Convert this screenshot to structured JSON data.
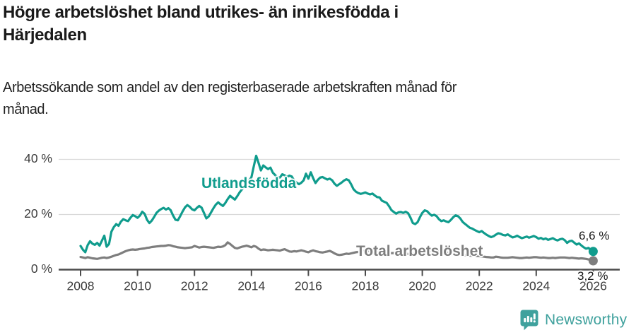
{
  "header": {
    "title_lines": [
      "Högre arbetslöshet bland utrikes- än inrikesfödda i",
      "Härjedalen"
    ],
    "subtitle_lines": [
      "Arbetssökande som andel av den registerbaserade arbetskraften månad för",
      "månad."
    ]
  },
  "colors": {
    "accent_teal": "#109c8d",
    "series_gray": "#7e7e7e",
    "axis": "#4b4b4b",
    "grid": "#d9d9d9",
    "tick_text": "#3b3b3b",
    "brand": "#3fa19d"
  },
  "chart_data": {
    "type": "line",
    "title": "Högre arbetslöshet bland utrikes- än inrikesfödda i Härjedalen",
    "subtitle": "Arbetssökande som andel av den registerbaserade arbetskraften månad för månad.",
    "x_unit": "month",
    "x_start_year": 2008,
    "x_end_year": 2026,
    "x_ticks": [
      "2008",
      "2010",
      "2012",
      "2014",
      "2016",
      "2018",
      "2020",
      "2022",
      "2024",
      "2026"
    ],
    "y_ticks": [
      {
        "value": 0,
        "label": "0 %"
      },
      {
        "value": 20,
        "label": "20 %"
      },
      {
        "value": 40,
        "label": "40 %"
      }
    ],
    "ylim": [
      0,
      44
    ],
    "grid": "horizontal",
    "legend_position": "inline-labels",
    "series": [
      {
        "name": "Utlandsfödda",
        "color": "#109c8d",
        "end_label": "6,6 %",
        "end_value": 6.6,
        "values": [
          8.6,
          7.2,
          6.3,
          8.9,
          10.3,
          9.4,
          9.0,
          9.7,
          8.7,
          10.5,
          12.3,
          8.3,
          9.3,
          13.8,
          15.4,
          16.5,
          15.9,
          17.4,
          18.3,
          17.9,
          17.6,
          18.8,
          19.8,
          19.4,
          18.8,
          19.6,
          21.0,
          20.2,
          18.1,
          16.9,
          17.8,
          19.1,
          20.6,
          21.4,
          22.0,
          22.4,
          21.8,
          22.3,
          21.5,
          19.6,
          18.1,
          17.9,
          19.4,
          21.1,
          22.6,
          23.4,
          22.8,
          21.9,
          21.5,
          22.4,
          23.1,
          22.5,
          20.6,
          18.6,
          19.3,
          20.8,
          22.3,
          23.6,
          24.4,
          23.7,
          23.1,
          24.2,
          25.6,
          26.8,
          26.1,
          25.4,
          26.6,
          28.0,
          29.1,
          30.2,
          31.4,
          32.2,
          33.5,
          37.6,
          41.3,
          38.7,
          36.0,
          37.8,
          37.1,
          36.5,
          37.0,
          35.2,
          34.3,
          33.4,
          33.4,
          34.6,
          34.2,
          33.6,
          34.1,
          33.8,
          32.3,
          31.6,
          31.0,
          31.5,
          32.4,
          34.8,
          33.0,
          35.3,
          33.2,
          31.4,
          32.6,
          33.4,
          33.6,
          33.1,
          32.7,
          33.0,
          32.4,
          31.2,
          30.4,
          31.0,
          31.6,
          32.3,
          32.8,
          32.4,
          31.0,
          29.2,
          28.3,
          27.8,
          27.5,
          27.7,
          28.0,
          27.6,
          27.3,
          27.6,
          26.9,
          26.3,
          26.2,
          25.0,
          24.6,
          24.2,
          23.0,
          21.6,
          20.9,
          20.3,
          20.8,
          20.9,
          20.6,
          21.0,
          20.5,
          18.9,
          16.9,
          16.5,
          17.2,
          19.0,
          20.6,
          21.5,
          21.2,
          20.3,
          19.6,
          19.9,
          19.4,
          18.3,
          17.6,
          17.9,
          17.5,
          17.2,
          18.0,
          19.0,
          19.7,
          19.4,
          18.6,
          17.3,
          16.6,
          15.9,
          15.2,
          14.9,
          14.4,
          14.0,
          13.6,
          14.0,
          13.3,
          12.7,
          12.2,
          11.8,
          12.1,
          12.7,
          13.2,
          13.0,
          12.6,
          12.4,
          12.8,
          12.2,
          11.7,
          11.9,
          12.3,
          11.8,
          11.4,
          11.7,
          12.0,
          11.6,
          11.9,
          12.2,
          11.8,
          11.2,
          11.5,
          11.0,
          11.3,
          10.8,
          11.1,
          11.4,
          10.9,
          10.6,
          11.0,
          11.2,
          10.7,
          9.7,
          10.3,
          10.5,
          9.8,
          9.1,
          9.5,
          8.8,
          8.1,
          7.6,
          7.9,
          7.2,
          6.6
        ]
      },
      {
        "name": "Total arbetslöshet",
        "color": "#7e7e7e",
        "end_label": "3,2 %",
        "end_value": 3.2,
        "values": [
          4.6,
          4.4,
          4.2,
          4.5,
          4.3,
          4.1,
          4.0,
          3.9,
          4.1,
          4.3,
          4.4,
          4.2,
          4.4,
          4.7,
          5.0,
          5.3,
          5.5,
          5.9,
          6.3,
          6.7,
          7.0,
          7.2,
          7.3,
          7.2,
          7.3,
          7.5,
          7.6,
          7.7,
          7.9,
          8.0,
          8.2,
          8.3,
          8.4,
          8.5,
          8.6,
          8.6,
          8.7,
          8.9,
          8.8,
          8.5,
          8.3,
          8.1,
          8.0,
          7.9,
          7.8,
          7.9,
          8.0,
          8.1,
          8.6,
          8.3,
          8.0,
          8.2,
          8.3,
          8.2,
          8.1,
          8.0,
          7.9,
          8.1,
          8.3,
          8.2,
          8.4,
          8.9,
          9.9,
          9.3,
          8.6,
          7.9,
          7.7,
          8.0,
          8.3,
          8.5,
          8.7,
          8.4,
          8.1,
          8.6,
          8.3,
          7.6,
          7.1,
          7.3,
          7.2,
          7.0,
          7.1,
          7.2,
          7.1,
          7.0,
          6.9,
          7.2,
          7.4,
          7.0,
          6.6,
          6.5,
          6.7,
          6.6,
          6.8,
          7.0,
          6.8,
          6.5,
          6.3,
          6.7,
          7.0,
          6.7,
          6.5,
          6.3,
          6.2,
          6.4,
          6.6,
          6.8,
          6.4,
          5.9,
          5.5,
          5.3,
          5.4,
          5.6,
          5.8,
          5.7,
          5.9,
          6.1,
          6.3,
          6.4,
          6.5,
          6.7,
          6.9,
          6.8,
          6.7,
          6.6,
          6.4,
          6.3,
          6.1,
          6.0,
          5.9,
          5.8,
          5.9,
          6.0,
          6.0,
          6.1,
          6.2,
          6.0,
          5.9,
          5.8,
          5.7,
          5.7,
          5.8,
          5.9,
          6.0,
          6.1,
          6.1,
          6.3,
          6.5,
          6.8,
          6.9,
          6.8,
          6.7,
          6.6,
          6.5,
          6.3,
          6.2,
          6.1,
          6.1,
          6.0,
          5.9,
          5.7,
          5.6,
          5.4,
          5.3,
          5.2,
          5.1,
          5.0,
          5.0,
          4.9,
          4.9,
          4.8,
          4.7,
          4.6,
          4.5,
          4.4,
          4.4,
          4.7,
          4.6,
          4.4,
          4.3,
          4.3,
          4.3,
          4.4,
          4.5,
          4.4,
          4.3,
          4.2,
          4.2,
          4.3,
          4.4,
          4.3,
          4.4,
          4.5,
          4.5,
          4.4,
          4.3,
          4.4,
          4.3,
          4.2,
          4.2,
          4.3,
          4.2,
          4.3,
          4.4,
          4.4,
          4.4,
          4.3,
          4.2,
          4.3,
          4.2,
          4.1,
          4.0,
          4.1,
          4.0,
          3.9,
          3.7,
          3.5,
          3.2
        ]
      }
    ]
  },
  "footer": {
    "brand": "Newsworthy",
    "brand_color": "#3fa19d"
  }
}
